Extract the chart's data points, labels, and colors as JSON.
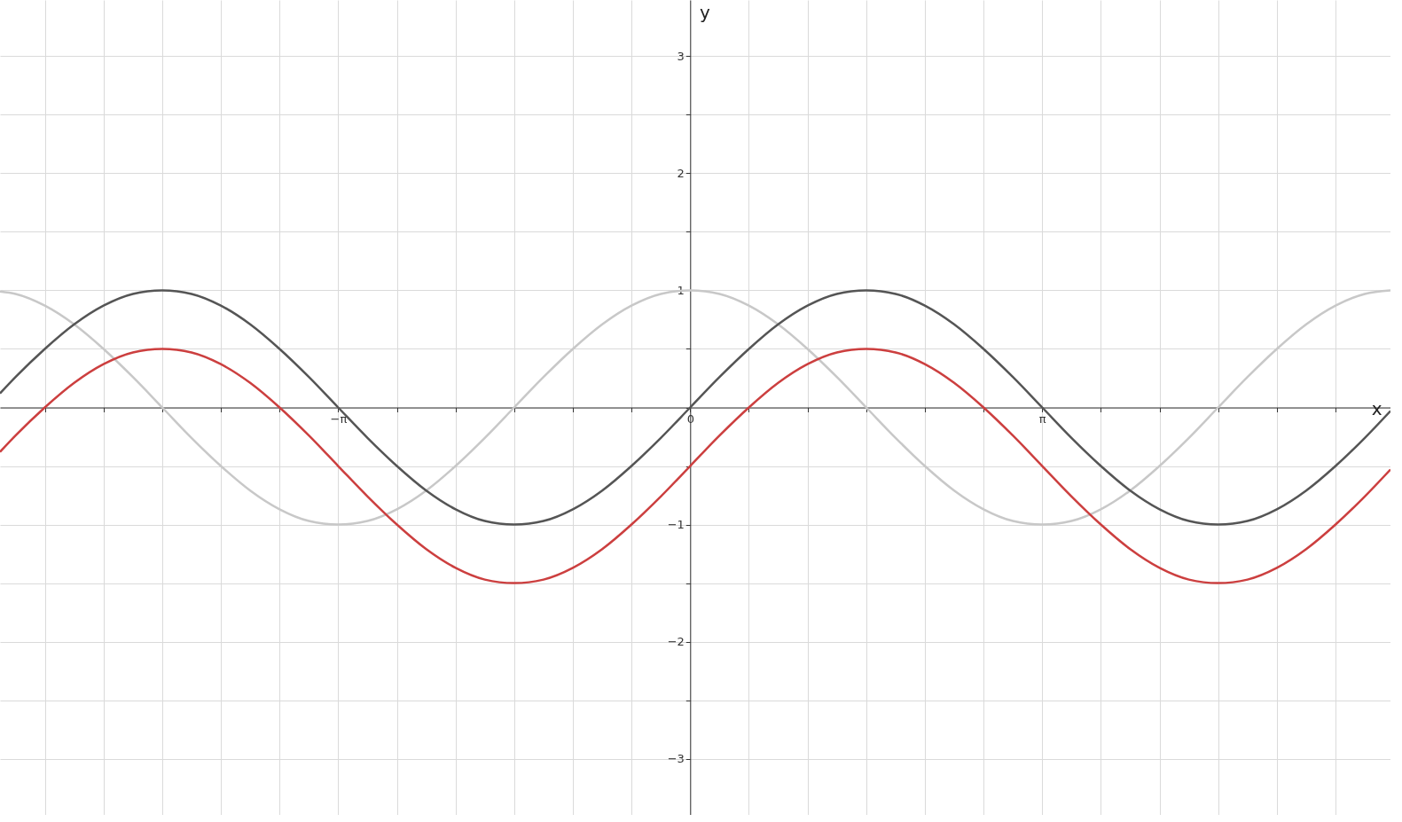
{
  "chart_data": {
    "type": "line",
    "xlabel": "x",
    "ylabel": "y",
    "x": [
      -6.16,
      -6.021,
      -5.76,
      -5.498,
      -5.236,
      -4.974,
      -4.712,
      -4.451,
      -4.189,
      -3.927,
      -3.665,
      -3.403,
      -3.142,
      -2.88,
      -2.618,
      -2.356,
      -2.094,
      -1.833,
      -1.571,
      -1.309,
      -1.047,
      -0.785,
      -0.524,
      -0.262,
      0,
      0.262,
      0.524,
      0.785,
      1.047,
      1.309,
      1.571,
      1.833,
      2.094,
      2.356,
      2.618,
      2.88,
      3.142,
      3.403,
      3.665,
      3.927,
      4.189,
      4.451,
      4.712,
      4.974,
      5.236,
      5.498,
      5.76,
      6.021,
      6.25
    ],
    "series": [
      {
        "color": "#c8c8c8",
        "values": [
          0.99,
          0.97,
          0.87,
          0.71,
          0.5,
          0.26,
          0,
          -0.26,
          -0.5,
          -0.71,
          -0.87,
          -0.97,
          -1,
          -0.97,
          -0.87,
          -0.71,
          -0.5,
          -0.26,
          0,
          0.26,
          0.5,
          0.71,
          0.87,
          0.97,
          1,
          0.97,
          0.87,
          0.71,
          0.5,
          0.26,
          0,
          -0.26,
          -0.5,
          -0.71,
          -0.87,
          -0.97,
          -1,
          -0.97,
          -0.87,
          -0.71,
          -0.5,
          -0.26,
          0,
          0.26,
          0.5,
          0.71,
          0.87,
          0.97,
          1.0
        ]
      },
      {
        "color": "#555555",
        "values": [
          0.12,
          0.26,
          0.5,
          0.71,
          0.87,
          0.97,
          1,
          0.97,
          0.87,
          0.71,
          0.5,
          0.26,
          0,
          -0.26,
          -0.5,
          -0.71,
          -0.87,
          -0.97,
          -1,
          -0.97,
          -0.87,
          -0.71,
          -0.5,
          -0.26,
          0,
          0.26,
          0.5,
          0.71,
          0.87,
          0.97,
          1,
          0.97,
          0.87,
          0.71,
          0.5,
          0.26,
          0,
          -0.26,
          -0.5,
          -0.71,
          -0.87,
          -0.97,
          -1,
          -0.97,
          -0.87,
          -0.71,
          -0.5,
          -0.26,
          -0.03
        ]
      },
      {
        "color": "#cc3f3f",
        "values": [
          -0.38,
          -0.24,
          0,
          0.21,
          0.37,
          0.47,
          0.5,
          0.47,
          0.37,
          0.21,
          0,
          -0.24,
          -0.5,
          -0.76,
          -1,
          -1.21,
          -1.37,
          -1.47,
          -1.5,
          -1.47,
          -1.37,
          -1.21,
          -1,
          -0.76,
          -0.5,
          -0.24,
          0,
          0.21,
          0.37,
          0.47,
          0.5,
          0.47,
          0.37,
          0.21,
          0,
          -0.24,
          -0.5,
          -0.76,
          -1,
          -1.21,
          -1.37,
          -1.47,
          -1.5,
          -1.47,
          -1.37,
          -1.21,
          -1,
          -0.76,
          -0.53
        ]
      }
    ],
    "xlim": [
      -6.16,
      6.25
    ],
    "xticks": [
      {
        "value": -5.7596,
        "label": null
      },
      {
        "value": -5.236,
        "label": null
      },
      {
        "value": -4.7124,
        "label": null
      },
      {
        "value": -4.1888,
        "label": null
      },
      {
        "value": -3.6652,
        "label": null
      },
      {
        "value": -3.1416,
        "label": "−π"
      },
      {
        "value": -2.618,
        "label": null
      },
      {
        "value": -2.0944,
        "label": null
      },
      {
        "value": -1.5708,
        "label": null
      },
      {
        "value": -1.0472,
        "label": null
      },
      {
        "value": -0.5236,
        "label": null
      },
      0,
      {
        "value": 0.5236,
        "label": null
      },
      {
        "value": 1.0472,
        "label": null
      },
      {
        "value": 1.5708,
        "label": null
      },
      {
        "value": 2.0944,
        "label": null
      },
      {
        "value": 2.618,
        "label": null
      },
      {
        "value": 3.1416,
        "label": "π"
      },
      {
        "value": 3.6652,
        "label": null
      },
      {
        "value": 4.1888,
        "label": null
      },
      {
        "value": 4.7124,
        "label": null
      },
      {
        "value": 5.236,
        "label": null
      },
      {
        "value": 5.7596,
        "label": null
      }
    ],
    "ylim": [
      -3.48,
      3.48
    ],
    "yticks": [
      -3,
      {
        "value": -2.5,
        "label": null
      },
      -2,
      {
        "value": -1.5,
        "label": null
      },
      -1,
      {
        "value": -0.5,
        "label": null
      },
      {
        "value": 0,
        "label": null
      },
      {
        "value": 0.5,
        "label": null
      },
      1,
      {
        "value": 1.5,
        "label": null
      },
      2,
      {
        "value": 2.5,
        "label": null
      },
      3
    ],
    "grid": true
  }
}
